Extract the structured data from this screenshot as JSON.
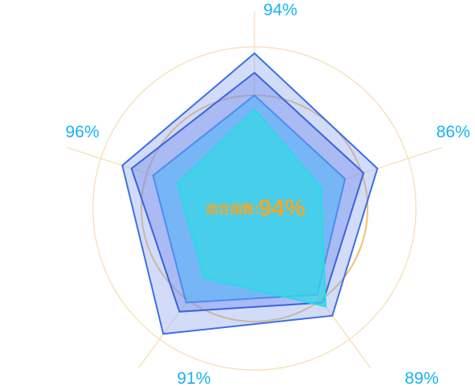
{
  "chart_data": {
    "type": "radar",
    "axes": [
      {
        "label": "94%"
      },
      {
        "label": "86%"
      },
      {
        "label": "89%"
      },
      {
        "label": "91%"
      },
      {
        "label": "96%"
      }
    ],
    "rmax": 1,
    "series": [
      {
        "values": [
          0.96,
          0.8,
          0.82,
          0.96,
          0.86
        ],
        "fill": "#8ea7ef",
        "fill_opacity": 0.4,
        "stroke": "#3f6fe6"
      },
      {
        "values": [
          0.84,
          0.71,
          0.72,
          0.79,
          0.8
        ],
        "fill": "#7b91ec",
        "fill_opacity": 0.45,
        "stroke": "#3a63e0"
      },
      {
        "values": [
          0.7,
          0.59,
          0.66,
          0.72,
          0.66
        ],
        "fill": "#5fb4f7",
        "fill_opacity": 0.7,
        "stroke": "#4c8df0"
      },
      {
        "values": [
          0.61,
          0.43,
          0.75,
          0.53,
          0.5
        ],
        "fill": "#35d8e6",
        "fill_opacity": 0.72,
        "stroke": "#24dbe4"
      }
    ],
    "rings": [
      0.2,
      0.4,
      0.7,
      1.0
    ],
    "center_text": {
      "prefix": "综合指数:",
      "value": "94%"
    },
    "colors": {
      "axis_label": "#1ab3ee",
      "center_text": "#f2a72a",
      "rings": "#f6ddb0",
      "ring_emphasis": "#f1c170",
      "spokes": "#f6ddb0"
    }
  }
}
